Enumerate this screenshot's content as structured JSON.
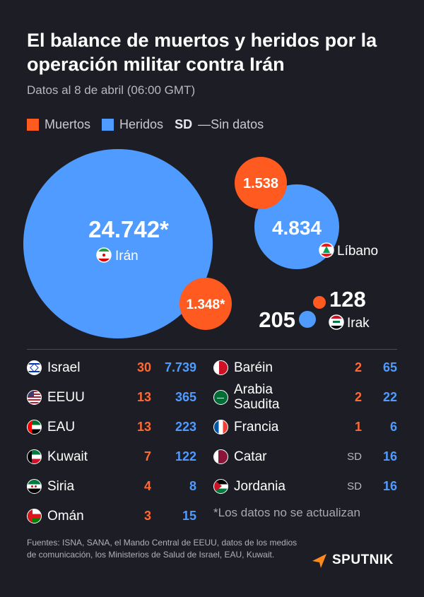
{
  "header": {
    "title": "El balance de muertos y heridos por la operación militar contra Irán",
    "subtitle": "Datos al 8 de abril (06:00 GMT)"
  },
  "legend": {
    "dead": "Muertos",
    "injured": "Heridos",
    "sd_abbr": "SD",
    "sd_text": "—Sin datos"
  },
  "colors": {
    "dead": "#ff5a1f",
    "injured": "#4f9bff",
    "background": "#1d1d25"
  },
  "chart_data": {
    "type": "bubble",
    "series": [
      {
        "country": "Irán",
        "injured": "24.742*",
        "injured_value": 24742,
        "dead": "1.348*",
        "dead_value": 1348,
        "flag": "iran-flag-icon"
      },
      {
        "country": "Líbano",
        "injured": "4.834",
        "injured_value": 4834,
        "dead": "1.538",
        "dead_value": 1538,
        "flag": "lebanon-flag-icon"
      },
      {
        "country": "Irak",
        "injured": "205",
        "injured_value": 205,
        "dead": "128",
        "dead_value": 128,
        "flag": "iraq-flag-icon"
      }
    ]
  },
  "table": {
    "left": [
      {
        "country": "Israel",
        "dead": "30",
        "injured": "7.739",
        "flag": "israel-flag-icon"
      },
      {
        "country": "EEUU",
        "dead": "13",
        "injured": "365",
        "flag": "usa-flag-icon"
      },
      {
        "country": "EAU",
        "dead": "13",
        "injured": "223",
        "flag": "uae-flag-icon"
      },
      {
        "country": "Kuwait",
        "dead": "7",
        "injured": "122",
        "flag": "kuwait-flag-icon"
      },
      {
        "country": "Siria",
        "dead": "4",
        "injured": "8",
        "flag": "syria-flag-icon"
      },
      {
        "country": "Omán",
        "dead": "3",
        "injured": "15",
        "flag": "oman-flag-icon"
      }
    ],
    "right": [
      {
        "country": "Baréin",
        "dead": "2",
        "injured": "65",
        "flag": "bahrain-flag-icon"
      },
      {
        "country": "Arabia Saudita",
        "dead": "2",
        "injured": "22",
        "flag": "saudi-flag-icon"
      },
      {
        "country": "Francia",
        "dead": "1",
        "injured": "6",
        "flag": "france-flag-icon"
      },
      {
        "country": "Catar",
        "dead": "SD",
        "injured": "16",
        "flag": "qatar-flag-icon"
      },
      {
        "country": "Jordania",
        "dead": "SD",
        "injured": "16",
        "flag": "jordan-flag-icon"
      }
    ],
    "note": "*Los datos no se actualizan"
  },
  "footer": {
    "sources": "Fuentes: ISNA, SANA, el Mando Central de EEUU, datos de los medios de comunicación, los Ministerios de Salud de Israel, EAU, Kuwait.",
    "brand": "SPUTNIK"
  }
}
